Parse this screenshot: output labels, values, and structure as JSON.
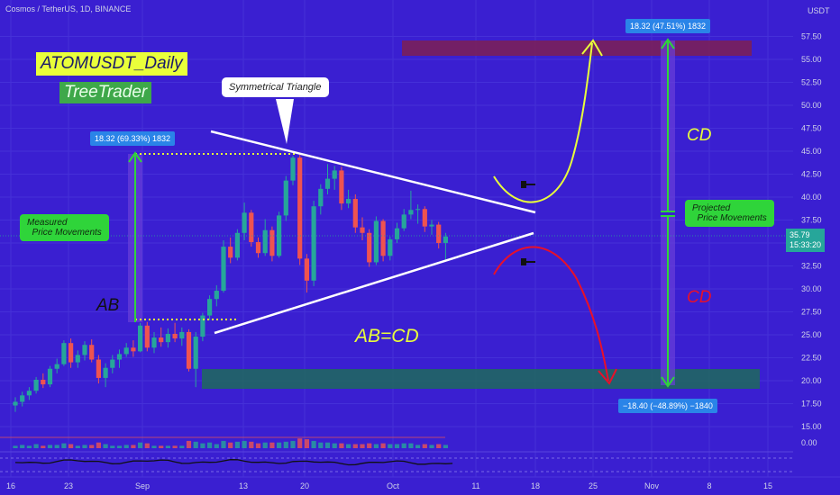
{
  "header": {
    "symbol": "Cosmos / TetherUS, 1D, BINANCE",
    "currency": "USDT"
  },
  "badges": {
    "title": "ATOMUSDT_Daily",
    "author": "TreeTrader"
  },
  "annotations": {
    "triangle": "Symmetrical Triangle",
    "measured": "Measured\n  Price Movements",
    "projected": "Projected\n  Price Movements",
    "ab": "AB",
    "cd_top": "CD",
    "cd_bottom": "CD",
    "abcd": "AB=CD",
    "measure_ab": "18.32 (69.33%) 1832",
    "measure_up": "18.32 (47.51%) 1832",
    "measure_down": "−18.40 (−48.89%) −1840"
  },
  "last_price": {
    "value": "35.79",
    "countdown": "15:33:20"
  },
  "colors": {
    "background": "#3a1fd1",
    "bull": "#26a69a",
    "bear": "#ef5350",
    "yellow": "#e9ff3a",
    "green": "#2fd43a",
    "red": "#e8102a",
    "target_top": "#7a1f5a",
    "target_bottom": "#1f6b5c"
  },
  "chart_data": {
    "type": "candlestick",
    "y_axis_ticks": [
      "57.50",
      "55.00",
      "52.50",
      "50.00",
      "47.50",
      "45.00",
      "42.50",
      "40.00",
      "37.50",
      "35.00",
      "32.50",
      "30.00",
      "27.50",
      "25.00",
      "22.50",
      "20.00",
      "17.50",
      "15.00"
    ],
    "x_axis_ticks": [
      "16",
      "23",
      "Sep",
      "13",
      "20",
      "Oct",
      "11",
      "18",
      "25",
      "Nov",
      "8",
      "15"
    ],
    "ylim": [
      15,
      57.5
    ],
    "volume_axis_ticks": [
      "0.00"
    ],
    "candles": [
      [
        17.3,
        18.2,
        16.6,
        17.7
      ],
      [
        17.7,
        18.8,
        17.2,
        18.4
      ],
      [
        18.4,
        19.3,
        17.9,
        18.9
      ],
      [
        18.9,
        20.4,
        18.6,
        20.1
      ],
      [
        20.1,
        20.8,
        19.2,
        19.6
      ],
      [
        19.6,
        21.6,
        19.3,
        21.3
      ],
      [
        21.3,
        22.4,
        20.8,
        21.8
      ],
      [
        21.8,
        24.4,
        21.6,
        24.1
      ],
      [
        24.1,
        24.6,
        21.4,
        22.0
      ],
      [
        22.0,
        23.3,
        21.4,
        22.8
      ],
      [
        22.8,
        24.3,
        22.2,
        23.9
      ],
      [
        23.9,
        24.5,
        22.0,
        22.3
      ],
      [
        22.3,
        22.8,
        19.7,
        20.3
      ],
      [
        20.3,
        21.9,
        19.3,
        21.4
      ],
      [
        21.4,
        22.8,
        20.8,
        22.3
      ],
      [
        22.3,
        23.4,
        21.4,
        22.9
      ],
      [
        22.9,
        24.1,
        22.6,
        23.6
      ],
      [
        23.6,
        24.4,
        22.6,
        23.2
      ],
      [
        23.2,
        26.3,
        23.1,
        26.0
      ],
      [
        26.0,
        26.4,
        23.2,
        23.6
      ],
      [
        23.6,
        25.3,
        23.0,
        24.7
      ],
      [
        24.7,
        25.8,
        23.7,
        24.2
      ],
      [
        24.2,
        25.7,
        23.6,
        25.1
      ],
      [
        25.1,
        26.3,
        24.2,
        24.6
      ],
      [
        24.6,
        25.8,
        23.8,
        25.3
      ],
      [
        25.3,
        25.6,
        21.0,
        21.3
      ],
      [
        21.3,
        25.3,
        19.3,
        24.8
      ],
      [
        24.8,
        27.4,
        24.3,
        27.1
      ],
      [
        27.1,
        29.3,
        26.6,
        28.9
      ],
      [
        28.9,
        30.4,
        28.1,
        29.8
      ],
      [
        29.8,
        35.3,
        29.6,
        34.6
      ],
      [
        34.6,
        35.6,
        32.8,
        33.4
      ],
      [
        33.4,
        36.5,
        33.1,
        36.1
      ],
      [
        36.1,
        39.4,
        35.3,
        38.3
      ],
      [
        38.3,
        38.6,
        34.6,
        35.1
      ],
      [
        35.1,
        35.6,
        33.4,
        33.9
      ],
      [
        33.9,
        37.6,
        33.6,
        36.4
      ],
      [
        36.4,
        36.8,
        33.0,
        33.6
      ],
      [
        33.6,
        38.4,
        33.4,
        38.0
      ],
      [
        38.0,
        42.3,
        37.4,
        41.8
      ],
      [
        41.8,
        44.5,
        41.3,
        44.3
      ],
      [
        44.3,
        44.6,
        32.6,
        33.3
      ],
      [
        33.3,
        33.8,
        29.6,
        30.9
      ],
      [
        30.9,
        39.6,
        30.3,
        39.0
      ],
      [
        39.0,
        41.4,
        38.1,
        40.9
      ],
      [
        40.9,
        43.6,
        40.3,
        42.0
      ],
      [
        42.0,
        43.4,
        40.8,
        42.9
      ],
      [
        42.9,
        43.3,
        38.6,
        39.3
      ],
      [
        39.3,
        40.8,
        38.8,
        39.8
      ],
      [
        39.8,
        40.3,
        36.1,
        36.7
      ],
      [
        36.7,
        37.8,
        35.3,
        36.1
      ],
      [
        36.1,
        36.5,
        32.4,
        32.9
      ],
      [
        32.9,
        37.9,
        32.6,
        37.4
      ],
      [
        37.4,
        37.6,
        33.0,
        33.6
      ],
      [
        33.6,
        35.7,
        33.1,
        35.4
      ],
      [
        35.4,
        37.2,
        35.0,
        36.6
      ],
      [
        36.6,
        38.7,
        36.3,
        38.1
      ],
      [
        38.1,
        40.7,
        37.6,
        38.6
      ],
      [
        38.6,
        39.2,
        37.1,
        38.7
      ],
      [
        38.7,
        39.0,
        36.2,
        36.8
      ],
      [
        36.8,
        37.5,
        35.9,
        37.0
      ],
      [
        37.0,
        37.3,
        34.4,
        35.0
      ],
      [
        35.0,
        36.1,
        33.2,
        35.7
      ]
    ],
    "volume": [
      3,
      4,
      3,
      5,
      3,
      4,
      4,
      6,
      5,
      3,
      4,
      4,
      7,
      5,
      3,
      3,
      4,
      4,
      7,
      6,
      3,
      3,
      3,
      3,
      3,
      9,
      8,
      6,
      7,
      5,
      9,
      7,
      8,
      9,
      8,
      6,
      7,
      7,
      7,
      8,
      9,
      12,
      11,
      9,
      7,
      7,
      6,
      6,
      5,
      5,
      5,
      6,
      5,
      6,
      5,
      5,
      6,
      6,
      4,
      5,
      4,
      5,
      4
    ],
    "levels": {
      "target_up": [
        55.5,
        57.2
      ],
      "target_down": [
        19.3,
        21.5
      ],
      "triangle_upper": [
        [
          48,
          20.0
        ],
        [
          64,
          38.5
        ]
      ],
      "triangle_lower": [
        [
          32,
          26.0
        ],
        [
          64,
          35.5
        ]
      ]
    },
    "measurements": {
      "ab": [
        25.9,
        44.3
      ],
      "cd_up": [
        38.0,
        57.0
      ],
      "cd_down": [
        38.0,
        19.5
      ]
    }
  }
}
